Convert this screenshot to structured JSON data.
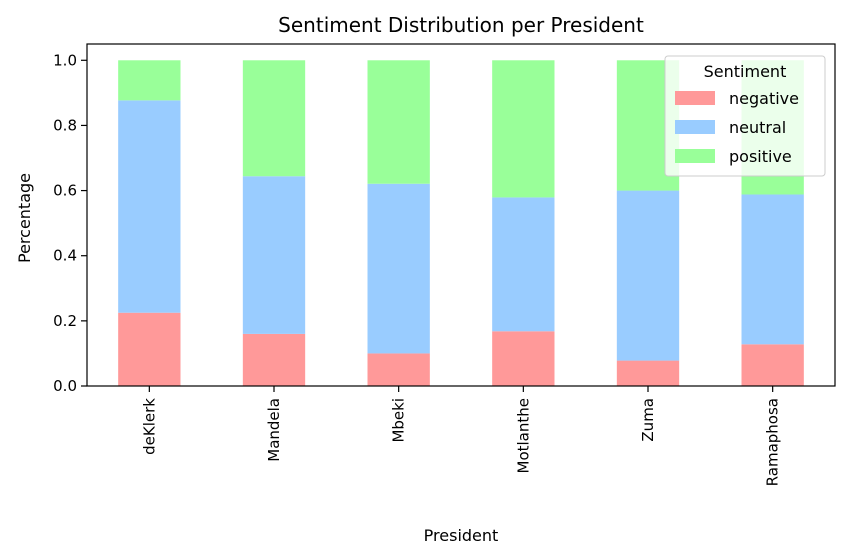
{
  "chart_data": {
    "type": "bar",
    "stacked": true,
    "title": "Sentiment Distribution per President",
    "xlabel": "President",
    "ylabel": "Percentage",
    "categories": [
      "deKlerk",
      "Mandela",
      "Mbeki",
      "Motlanthe",
      "Zuma",
      "Ramaphosa"
    ],
    "series": [
      {
        "name": "negative",
        "color": "#ff9999",
        "values": [
          0.225,
          0.16,
          0.1,
          0.168,
          0.078,
          0.128
        ]
      },
      {
        "name": "neutral",
        "color": "#99ccff",
        "values": [
          0.652,
          0.484,
          0.521,
          0.411,
          0.522,
          0.46
        ]
      },
      {
        "name": "positive",
        "color": "#99ff99",
        "values": [
          0.123,
          0.356,
          0.379,
          0.421,
          0.4,
          0.412
        ]
      }
    ],
    "ylim": [
      0,
      1.05
    ],
    "yticks": [
      "0.0",
      "0.2",
      "0.4",
      "0.6",
      "0.8",
      "1.0"
    ],
    "grid": false,
    "legend": {
      "title": "Sentiment",
      "position": "upper-right"
    }
  }
}
